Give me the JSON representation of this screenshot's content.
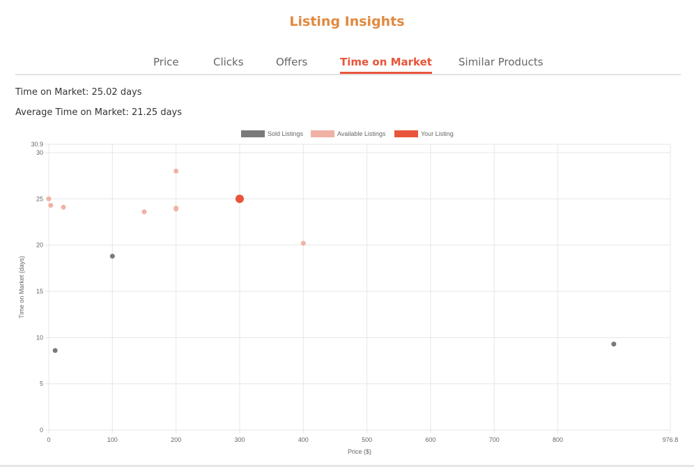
{
  "title": "Listing Insights",
  "tabs": [
    {
      "label": "Price",
      "active": false
    },
    {
      "label": "Clicks",
      "active": false
    },
    {
      "label": "Offers",
      "active": false
    },
    {
      "label": "Time on Market",
      "active": true
    },
    {
      "label": "Similar Products",
      "active": false
    }
  ],
  "stats": {
    "time_on_market": "Time on Market: 25.02 days",
    "average_time_on_market": "Average Time on Market: 21.25 days"
  },
  "colors": {
    "accent": "#e8553a",
    "title": "#e0893f",
    "sold": "#7a7a7a",
    "available": "#f0b2a4",
    "your": "#e8553a"
  },
  "chart_data": {
    "type": "scatter",
    "xlabel": "Price ($)",
    "ylabel": "Time on Market (days)",
    "xlim": [
      0,
      976.8
    ],
    "ylim": [
      0,
      30.9
    ],
    "x_ticks": [
      "0",
      "100",
      "200",
      "300",
      "400",
      "500",
      "600",
      "700",
      "800",
      "976.8"
    ],
    "y_ticks": [
      "0",
      "5",
      "10",
      "15",
      "20",
      "25",
      "30",
      "30.9"
    ],
    "x_tick_values": [
      0,
      100,
      200,
      300,
      400,
      500,
      600,
      700,
      800,
      976.8
    ],
    "y_tick_values": [
      0,
      5,
      10,
      15,
      20,
      25,
      30,
      30.9
    ],
    "grid": true,
    "legend_position": "top",
    "series": [
      {
        "name": "Sold Listings",
        "color": "#7a7a7a",
        "points": [
          {
            "x": 100,
            "y": 18.8
          },
          {
            "x": 10,
            "y": 8.6
          },
          {
            "x": 888,
            "y": 9.3
          }
        ]
      },
      {
        "name": "Available Listings",
        "color": "#f0b2a4",
        "points": [
          {
            "x": 200,
            "y": 28.0
          },
          {
            "x": 0,
            "y": 25.0
          },
          {
            "x": 3,
            "y": 24.3
          },
          {
            "x": 23,
            "y": 24.1
          },
          {
            "x": 150,
            "y": 23.6
          },
          {
            "x": 200,
            "y": 24.0
          },
          {
            "x": 200,
            "y": 23.9
          },
          {
            "x": 400,
            "y": 20.2
          }
        ]
      },
      {
        "name": "Your Listing",
        "color": "#e8553a",
        "points": [
          {
            "x": 300,
            "y": 25.0
          }
        ]
      }
    ]
  }
}
